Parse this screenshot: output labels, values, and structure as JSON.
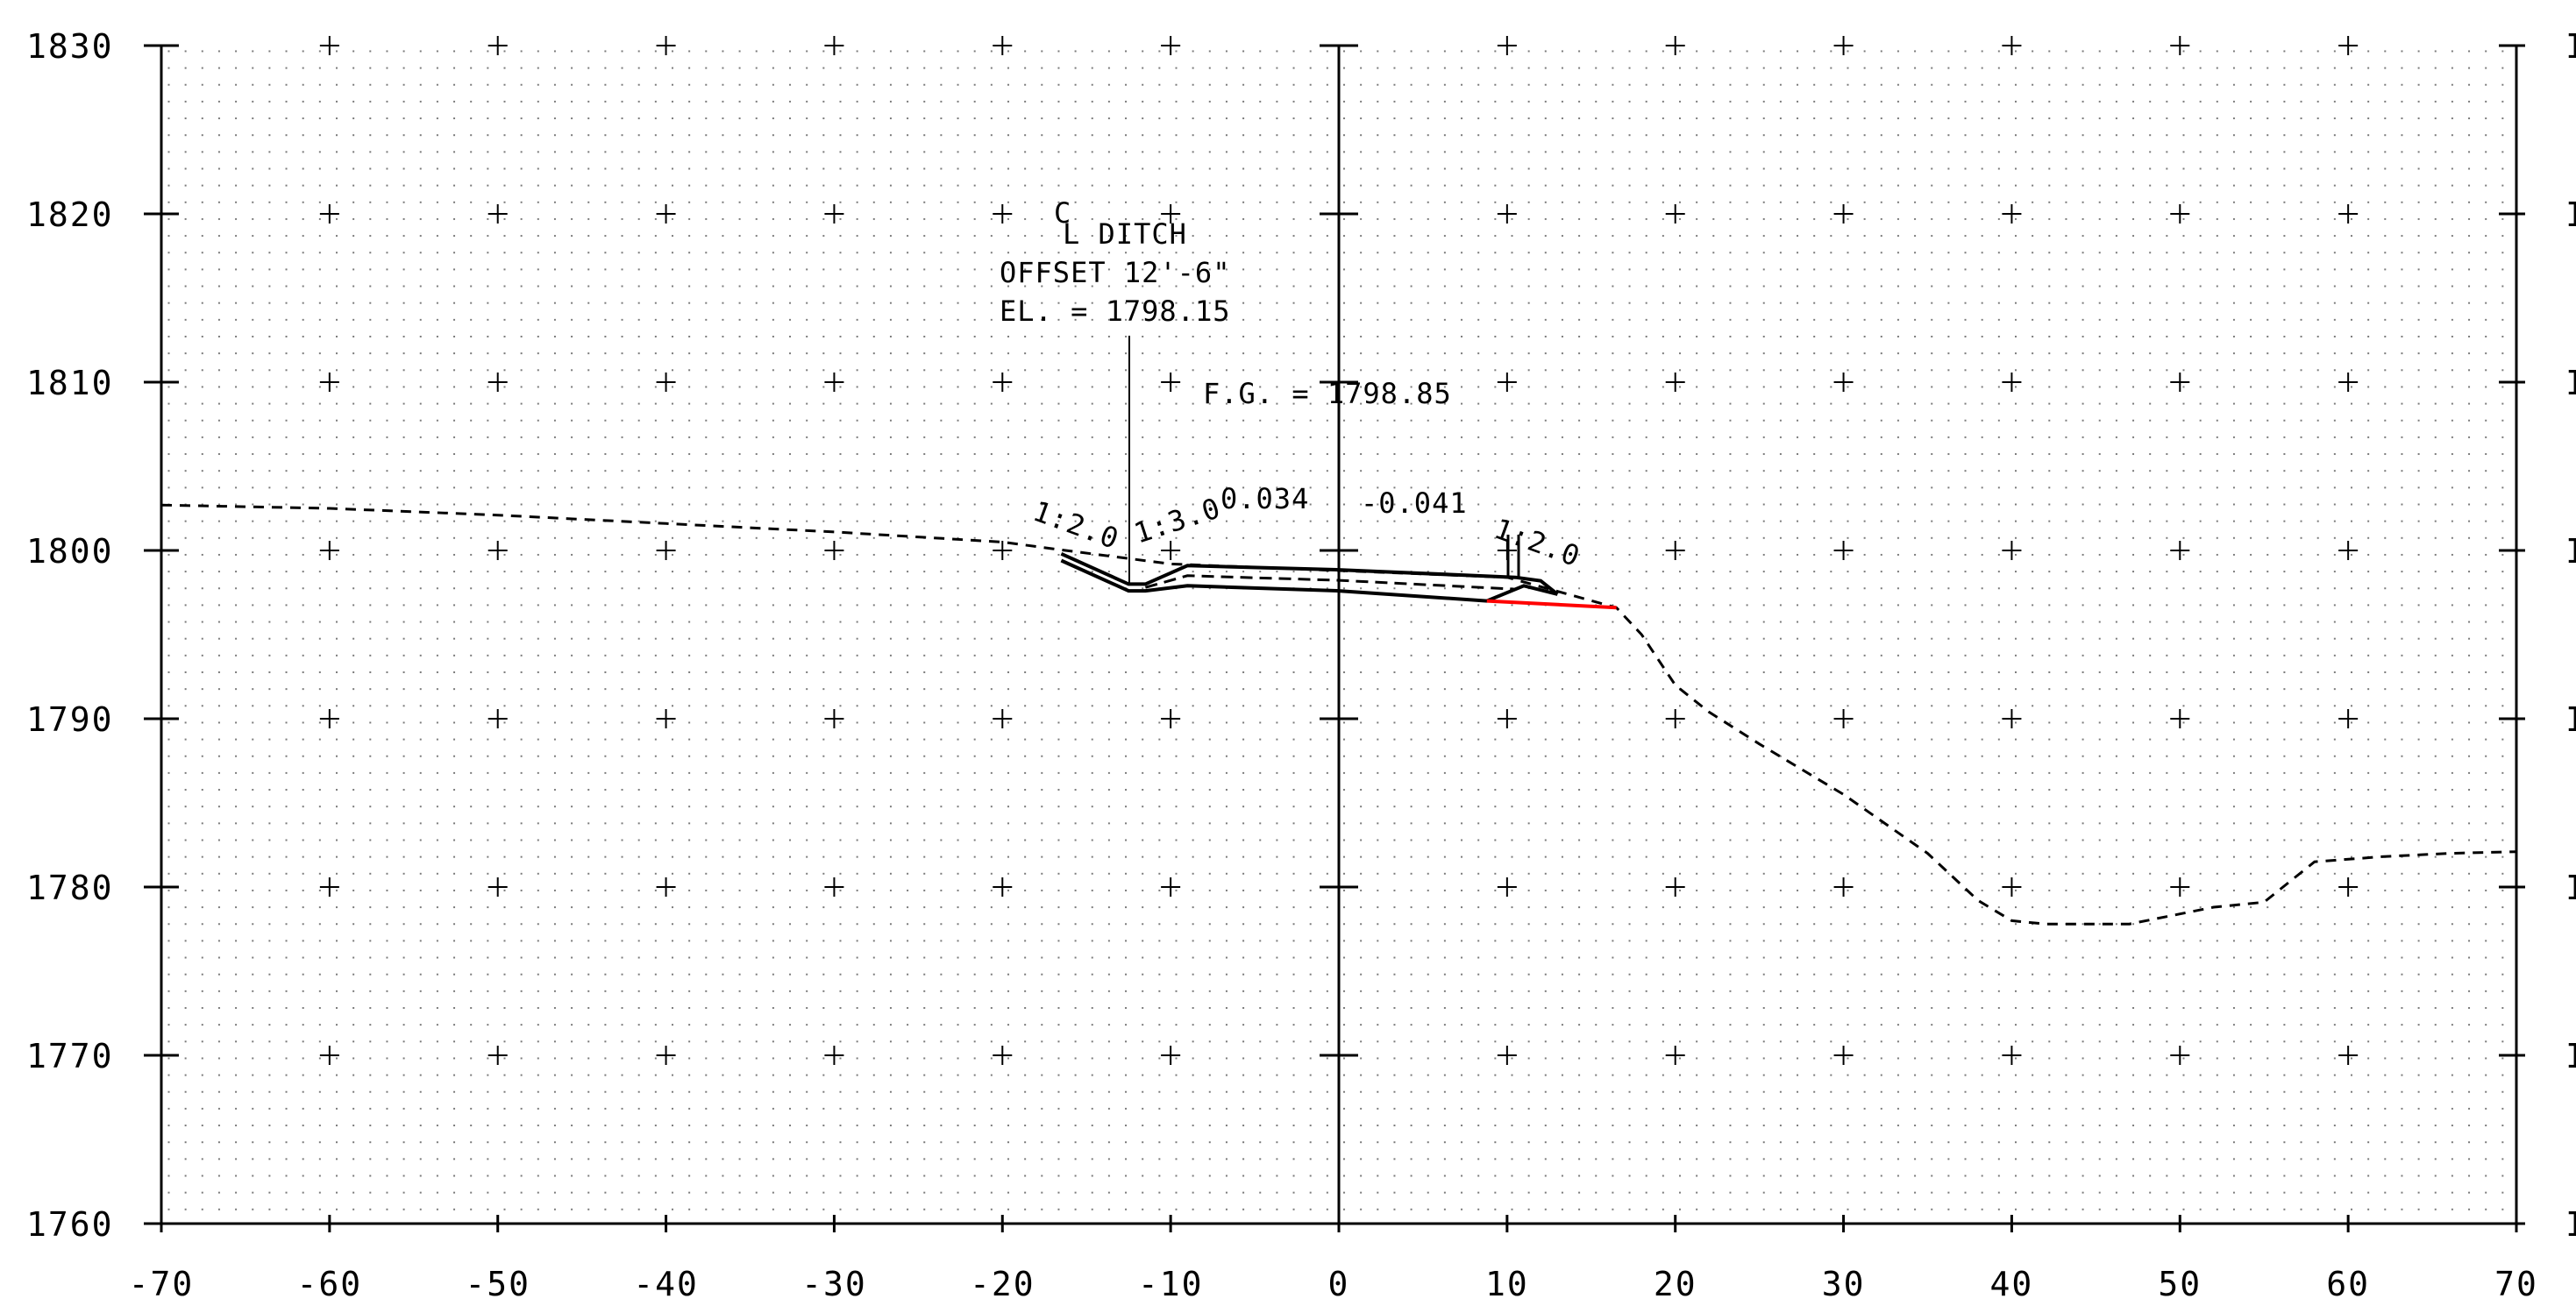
{
  "chart_data": {
    "type": "line",
    "x_ticks": [
      "-70",
      "-60",
      "-50",
      "-40",
      "-30",
      "-20",
      "-10",
      "0",
      "10",
      "20",
      "30",
      "40",
      "50",
      "60",
      "70"
    ],
    "y_ticks": [
      "1760",
      "1770",
      "1780",
      "1790",
      "1800",
      "1810",
      "1820",
      "1830"
    ],
    "xlim": [
      -70,
      70
    ],
    "ylim": [
      1760,
      1830
    ],
    "grid": "dotted with + markers",
    "annotations": {
      "ditch_symbol": "C",
      "ditch_title": "L DITCH",
      "ditch_offset": "OFFSET 12'-6\"",
      "ditch_elev": "EL. = 1798.15",
      "finish_grade": "F.G. = 1798.85",
      "slope_left": "0.034",
      "slope_right": "-0.041",
      "side_slope_1": "1:2.0",
      "side_slope_2": "1:3.0",
      "side_slope_3": "1:2.0"
    },
    "existing_ground": [
      [
        -70,
        1802.7
      ],
      [
        -60,
        1802.5
      ],
      [
        -50,
        1802.1
      ],
      [
        -40,
        1801.6
      ],
      [
        -30,
        1801.1
      ],
      [
        -20,
        1800.5
      ],
      [
        -17,
        1800.1
      ],
      [
        -10,
        1799.2
      ],
      [
        0,
        1798.8
      ],
      [
        10,
        1798.4
      ],
      [
        16.5,
        1796.6
      ],
      [
        18,
        1795
      ],
      [
        20,
        1792
      ],
      [
        22,
        1790.4
      ],
      [
        25,
        1788.5
      ],
      [
        30,
        1785.5
      ],
      [
        35,
        1782
      ],
      [
        38,
        1779.2
      ],
      [
        40,
        1778
      ],
      [
        42,
        1777.8
      ],
      [
        47,
        1777.8
      ],
      [
        50,
        1778.4
      ],
      [
        52,
        1778.8
      ],
      [
        55,
        1779.1
      ],
      [
        58,
        1781.5
      ],
      [
        62,
        1781.8
      ],
      [
        66,
        1782
      ],
      [
        70,
        1782.1
      ]
    ],
    "template_top": [
      [
        -16.5,
        1799.8
      ],
      [
        -12.5,
        1798
      ],
      [
        -11.5,
        1798
      ],
      [
        -9,
        1799.1
      ],
      [
        0,
        1798.85
      ],
      [
        10.5,
        1798.4
      ],
      [
        12,
        1798.2
      ],
      [
        13,
        1797.4
      ]
    ],
    "template_bottom": [
      [
        -16.5,
        1799.4
      ],
      [
        -12.5,
        1797.6
      ],
      [
        -11.5,
        1797.6
      ],
      [
        -9,
        1797.9
      ],
      [
        0,
        1797.6
      ],
      [
        8.8,
        1797.0
      ],
      [
        11,
        1797.9
      ],
      [
        13,
        1797.4
      ]
    ],
    "daylight_fill": [
      [
        8.8,
        1797.0
      ],
      [
        16.5,
        1796.6
      ]
    ]
  },
  "colors": {
    "axis": "#000000",
    "grid_dots": "#7a7a7a",
    "profile": "#000000",
    "daylight": "#ff0000"
  }
}
